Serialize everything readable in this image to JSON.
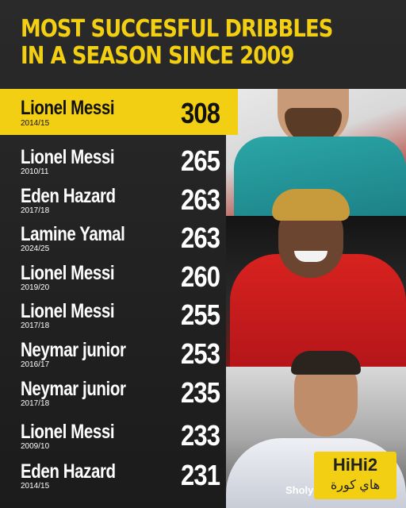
{
  "title": {
    "line1": "MOST SUCCESFUL DRIBBLES",
    "line2": "IN A SEASON SINCE 2009"
  },
  "rows": [
    {
      "name": "Lionel Messi",
      "season": "2014/15",
      "value": "308"
    },
    {
      "name": "Lionel Messi",
      "season": "2010/11",
      "value": "265"
    },
    {
      "name": "Eden Hazard",
      "season": "2017/18",
      "value": "263"
    },
    {
      "name": "Lamine Yamal",
      "season": "2024/25",
      "value": "263"
    },
    {
      "name": "Lionel Messi",
      "season": "2019/20",
      "value": "260"
    },
    {
      "name": "Lionel Messi",
      "season": "2017/18",
      "value": "255"
    },
    {
      "name": "Neymar junior",
      "season": "2016/17",
      "value": "253"
    },
    {
      "name": "Neymar junior",
      "season": "2017/18",
      "value": "235"
    },
    {
      "name": "Lionel Messi",
      "season": "2009/10",
      "value": "233"
    },
    {
      "name": "Eden Hazard",
      "season": "2014/15",
      "value": "231"
    }
  ],
  "watermark": "Sholy",
  "logo": {
    "main": "HiHi2",
    "sub": "هاي كورة"
  },
  "colors": {
    "accent": "#f2cf12",
    "background": "#1f1f1f",
    "text": "#ffffff"
  }
}
